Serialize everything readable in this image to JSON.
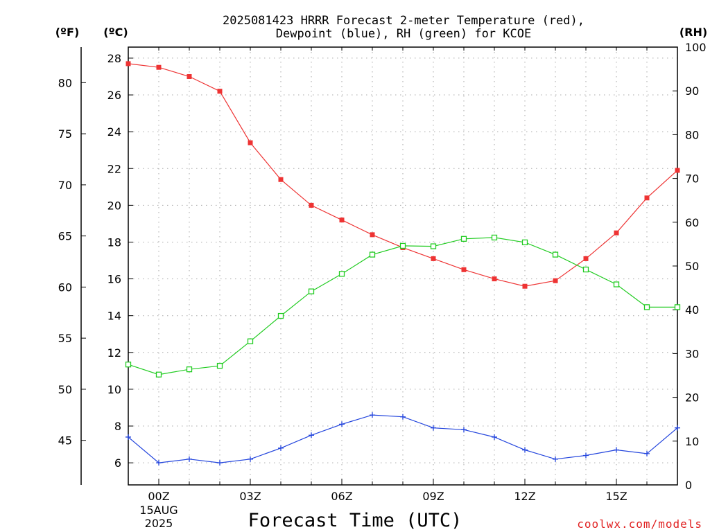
{
  "chart_data": {
    "type": "line",
    "title": [
      "2025081423 HRRR Forecast 2-meter Temperature (red),",
      "Dewpoint (blue), RH (green) for KCOE"
    ],
    "xlabel": "Forecast Time (UTC)",
    "credit": "coolwx.com/models",
    "units": {
      "fahrenheit": "(ºF)",
      "celsius": "(ºC)",
      "rh": "(RH)"
    },
    "x_hours": [
      -1,
      0,
      1,
      2,
      3,
      4,
      5,
      6,
      7,
      8,
      9,
      10,
      11,
      12,
      13,
      14,
      15,
      16,
      17
    ],
    "x_range": [
      -1,
      17
    ],
    "x_ticks": [
      {
        "hour": 0,
        "label": "00Z",
        "date": [
          "15AUG",
          "2025"
        ]
      },
      {
        "hour": 3,
        "label": "03Z",
        "date": []
      },
      {
        "hour": 6,
        "label": "06Z",
        "date": []
      },
      {
        "hour": 9,
        "label": "09Z",
        "date": []
      },
      {
        "hour": 12,
        "label": "12Z",
        "date": []
      },
      {
        "hour": 15,
        "label": "15Z",
        "date": []
      }
    ],
    "celsius_range": [
      4.8,
      28.6
    ],
    "celsius_ticks": [
      6,
      8,
      10,
      12,
      14,
      16,
      18,
      20,
      22,
      24,
      26,
      28
    ],
    "fahrenheit_ticks": [
      45,
      50,
      55,
      60,
      65,
      70,
      75,
      80
    ],
    "rh_range": [
      0,
      100
    ],
    "rh_ticks": [
      0,
      10,
      20,
      30,
      40,
      50,
      60,
      70,
      80,
      90,
      100
    ],
    "grid": true,
    "series": [
      {
        "key": "temp",
        "axis": "celsius",
        "color": "#ee3333",
        "marker": "filled-square",
        "values": [
          27.7,
          27.5,
          27.0,
          26.2,
          23.4,
          21.4,
          20.0,
          19.2,
          18.4,
          17.7,
          17.1,
          16.5,
          16.0,
          15.6,
          15.9,
          17.1,
          18.5,
          20.4,
          21.9
        ]
      },
      {
        "key": "dewpoint",
        "axis": "celsius",
        "color": "#2244dd",
        "marker": "plus",
        "values": [
          7.4,
          6.0,
          6.2,
          6.0,
          6.2,
          6.8,
          7.5,
          8.1,
          8.6,
          8.5,
          7.9,
          7.8,
          7.4,
          6.7,
          6.2,
          6.4,
          6.7,
          6.5,
          7.9
        ]
      },
      {
        "key": "rh",
        "axis": "rh",
        "color": "#22cc22",
        "marker": "open-square",
        "values": [
          27.5,
          25.2,
          26.4,
          27.2,
          32.8,
          38.6,
          44.2,
          48.2,
          52.6,
          54.6,
          54.5,
          56.2,
          56.5,
          55.4,
          52.6,
          49.2,
          45.8,
          40.6,
          40.6
        ]
      }
    ]
  }
}
